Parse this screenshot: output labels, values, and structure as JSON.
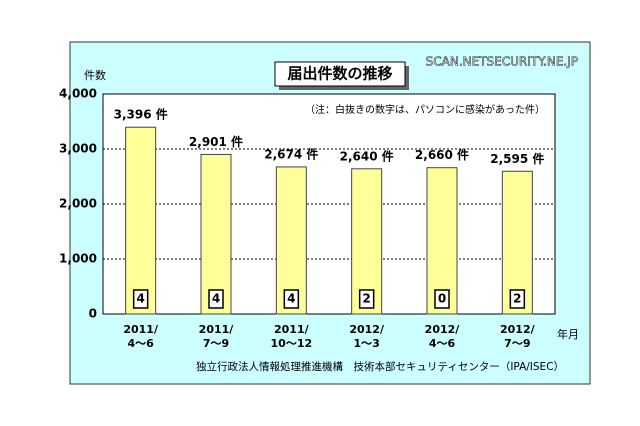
{
  "chart_data": {
    "type": "bar",
    "title": "届出件数の推移",
    "watermark": "SCAN.NETSECURITY.NE.JP",
    "y_label": "件数",
    "x_label": "年月",
    "note": "（注：白抜きの数字は、パソコンに感染があった件）",
    "source": "独立行政法人情報処理推進機構　技術本部セキュリティセンター（IPA/ISEC）",
    "categories": [
      [
        "2011/",
        "4～6"
      ],
      [
        "2011/",
        "7～9"
      ],
      [
        "2011/",
        "10～12"
      ],
      [
        "2012/",
        "1～3"
      ],
      [
        "2012/",
        "4～6"
      ],
      [
        "2012/",
        "7～9"
      ]
    ],
    "values": [
      3396,
      2901,
      2674,
      2640,
      2660,
      2595
    ],
    "value_labels": [
      "3,396 件",
      "2,901 件",
      "2,674 件",
      "2,640 件",
      "2,660 件",
      "2,595 件"
    ],
    "infected": [
      4,
      4,
      4,
      2,
      0,
      2
    ],
    "color": "#ffff99",
    "ylim": [
      0,
      4000
    ],
    "yticks": [
      0,
      {
        "value": 1000,
        "label": "1,000"
      },
      {
        "value": 2000,
        "label": "2,000"
      },
      {
        "value": 3000,
        "label": "3,000"
      },
      {
        "value": 4000,
        "label": "4,000"
      }
    ],
    "grid": true
  }
}
